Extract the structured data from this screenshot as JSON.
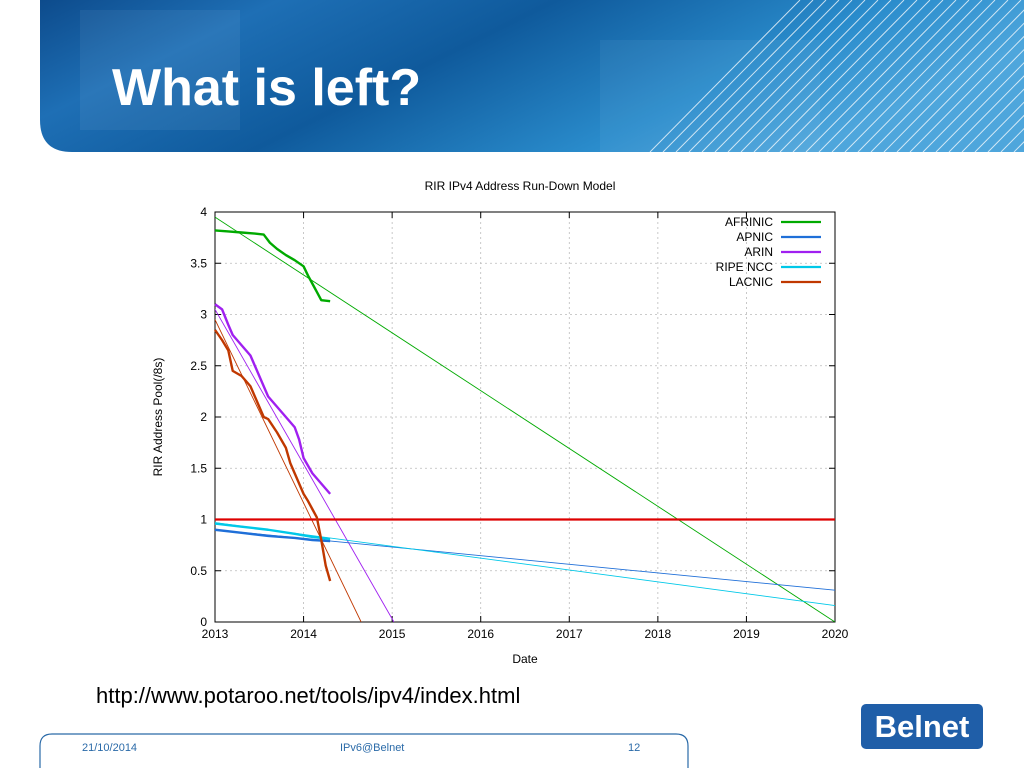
{
  "slide": {
    "title": "What is left?",
    "source_url": "http://www.potaroo.net/tools/ipv4/index.html",
    "logo_text": "Belnet",
    "footer": {
      "date": "21/10/2014",
      "center": "IPv6@Belnet",
      "page": "12"
    }
  },
  "colors": {
    "banner_dark": "#0d4f8f",
    "banner_light": "#2e8fcf",
    "footer_line": "#2a6aa8"
  },
  "chart_data": {
    "type": "line",
    "title": "RIR IPv4 Address Run-Down Model",
    "xlabel": "Date",
    "ylabel": "RIR Address Pool(/8s)",
    "xlim": [
      2013,
      2020
    ],
    "ylim": [
      0,
      4
    ],
    "xticks": [
      2013,
      2014,
      2015,
      2016,
      2017,
      2018,
      2019,
      2020
    ],
    "yticks": [
      "0",
      "0.5",
      "1",
      "1.5",
      "2",
      "2.5",
      "3",
      "3.5",
      "4"
    ],
    "grid": true,
    "legend_position": "top-right",
    "series": [
      {
        "name": "AFRINIC",
        "color": "#00aa00",
        "x": [
          2013.0,
          2013.15,
          2013.3,
          2013.45,
          2013.55,
          2013.62,
          2013.7,
          2013.8,
          2013.9,
          2014.0,
          2014.05,
          2014.1,
          2014.15,
          2014.2,
          2014.3
        ],
        "y": [
          3.82,
          3.81,
          3.8,
          3.79,
          3.78,
          3.7,
          3.64,
          3.58,
          3.53,
          3.47,
          3.38,
          3.3,
          3.22,
          3.14,
          3.13
        ]
      },
      {
        "name": "APNIC",
        "color": "#1f6fd8",
        "x": [
          2013.0,
          2013.3,
          2013.6,
          2013.9,
          2014.1,
          2014.3
        ],
        "y": [
          0.9,
          0.87,
          0.84,
          0.82,
          0.8,
          0.79
        ]
      },
      {
        "name": "ARIN",
        "color": "#a020f0",
        "x": [
          2013.0,
          2013.08,
          2013.15,
          2013.2,
          2013.3,
          2013.4,
          2013.45,
          2013.5,
          2013.55,
          2013.6,
          2013.7,
          2013.8,
          2013.9,
          2013.95,
          2014.0,
          2014.1,
          2014.2,
          2014.3
        ],
        "y": [
          3.1,
          3.05,
          2.9,
          2.8,
          2.7,
          2.6,
          2.5,
          2.4,
          2.3,
          2.2,
          2.1,
          2.0,
          1.9,
          1.78,
          1.6,
          1.45,
          1.35,
          1.25
        ]
      },
      {
        "name": "RIPE NCC",
        "color": "#00c8e8",
        "x": [
          2013.0,
          2013.3,
          2013.6,
          2013.9,
          2014.1,
          2014.3
        ],
        "y": [
          0.96,
          0.93,
          0.9,
          0.86,
          0.83,
          0.81
        ]
      },
      {
        "name": "LACNIC",
        "color": "#c03800",
        "x": [
          2013.0,
          2013.08,
          2013.15,
          2013.2,
          2013.3,
          2013.4,
          2013.45,
          2013.5,
          2013.55,
          2013.6,
          2013.7,
          2013.8,
          2013.85,
          2013.9,
          2013.95,
          2014.0,
          2014.05,
          2014.1,
          2014.15,
          2014.2,
          2014.25,
          2014.3
        ],
        "y": [
          2.85,
          2.75,
          2.65,
          2.45,
          2.4,
          2.3,
          2.2,
          2.1,
          2.0,
          1.98,
          1.85,
          1.7,
          1.55,
          1.45,
          1.35,
          1.25,
          1.18,
          1.1,
          1.02,
          0.8,
          0.55,
          0.4
        ]
      }
    ],
    "trend_lines": [
      {
        "color": "#00aa00",
        "x": [
          2013.0,
          2020.0
        ],
        "y": [
          3.95,
          0.0
        ]
      },
      {
        "color": "#a020f0",
        "x": [
          2013.0,
          2015.02
        ],
        "y": [
          3.05,
          0.0
        ]
      },
      {
        "color": "#c03800",
        "x": [
          2013.0,
          2014.65
        ],
        "y": [
          2.95,
          0.0
        ]
      },
      {
        "color": "#1f6fd8",
        "x": [
          2013.0,
          2020.0
        ],
        "y": [
          0.9,
          0.31
        ]
      },
      {
        "color": "#00c8e8",
        "x": [
          2013.0,
          2020.0
        ],
        "y": [
          0.97,
          0.16
        ]
      }
    ],
    "reference_line": {
      "y": 1,
      "color": "#dd0000"
    }
  }
}
